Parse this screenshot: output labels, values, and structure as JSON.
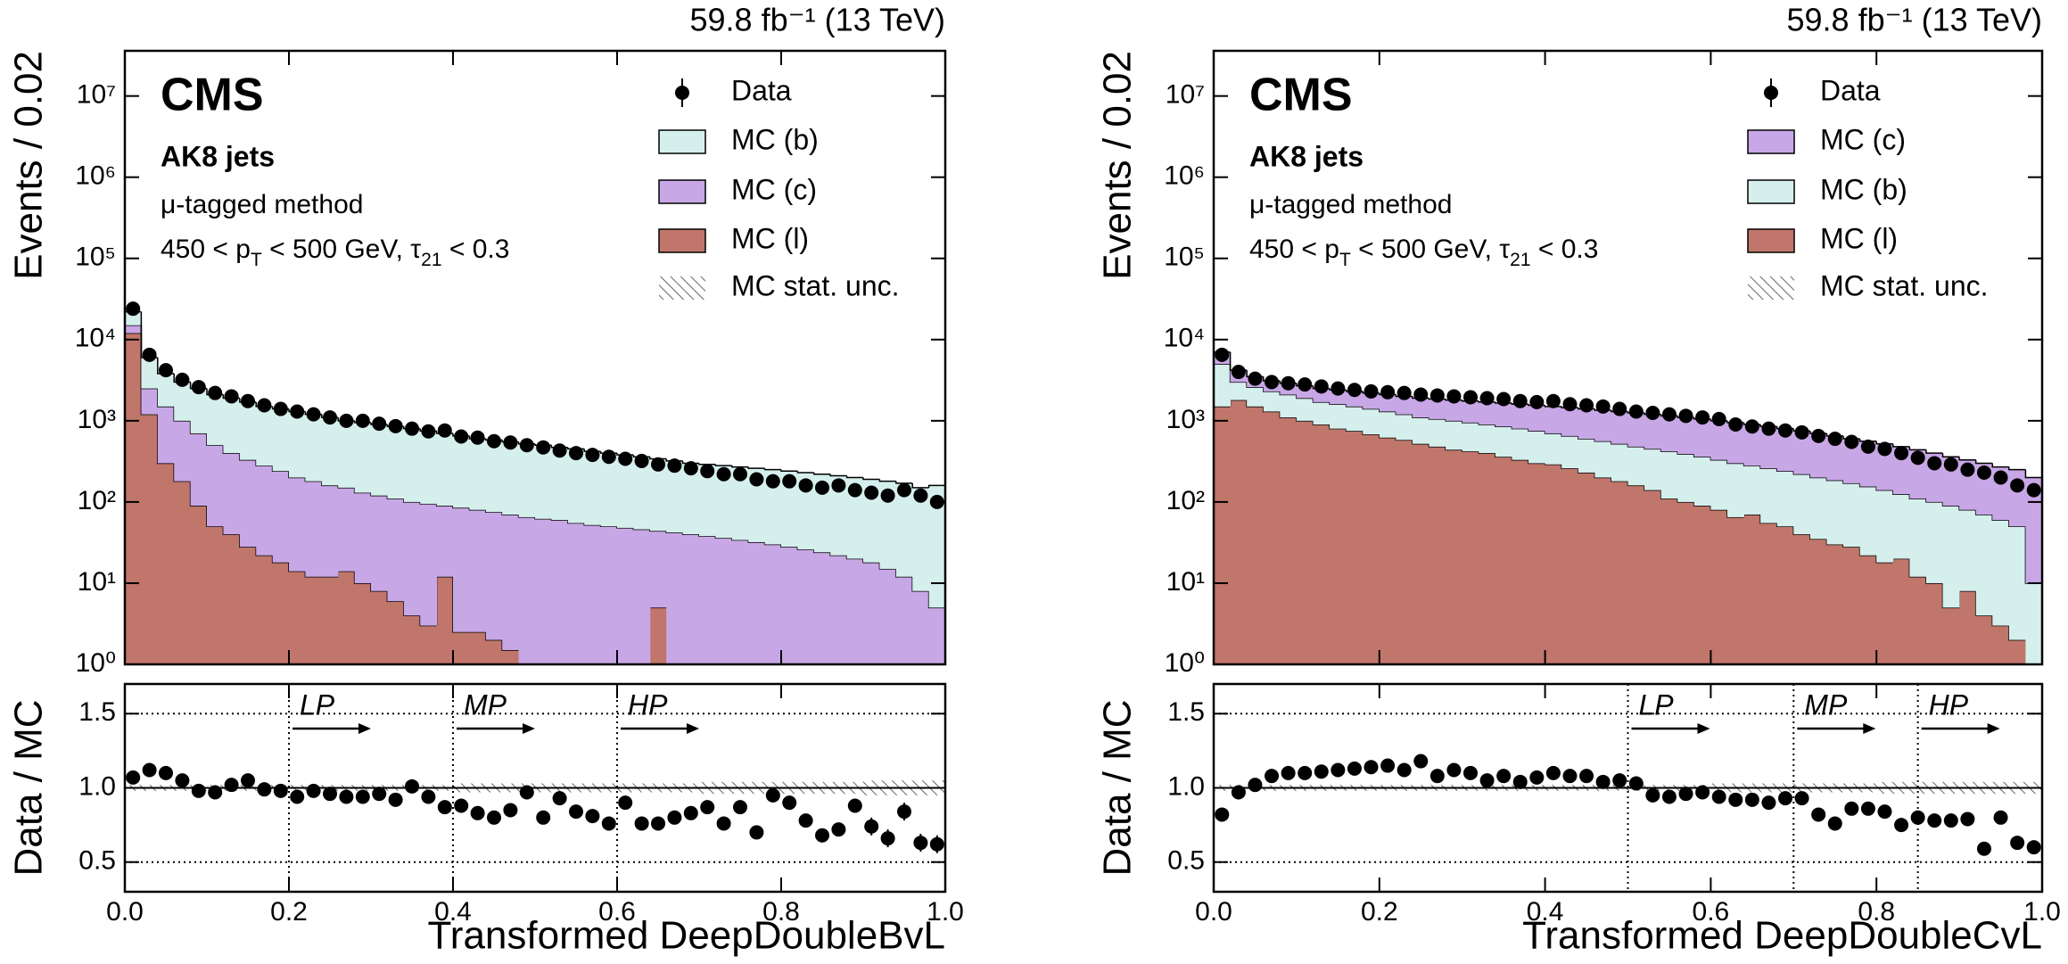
{
  "chart_data": [
    {
      "type": "histogram_ratio",
      "lumi": "59.8 fb⁻¹ (13 TeV)",
      "experiment": "CMS",
      "jets": "AK8 jets",
      "method": "μ-tagged method",
      "selection": [
        "450 < p",
        "T",
        " < 500 GeV, τ",
        "21",
        " < 0.3"
      ],
      "ylabel": "Events / 0.02",
      "log": true,
      "xlim": [
        0,
        1
      ],
      "ylim": [
        1,
        36000000
      ],
      "yticks": [
        {
          "value": 1,
          "label": "10⁰"
        },
        {
          "value": 10,
          "label": "10¹"
        },
        {
          "value": 100,
          "label": "10²"
        },
        {
          "value": 1000,
          "label": "10³"
        },
        {
          "value": 10000,
          "label": "10⁴"
        },
        {
          "value": 100000,
          "label": "10⁵"
        },
        {
          "value": 1000000,
          "label": "10⁶"
        },
        {
          "value": 10000000,
          "label": "10⁷"
        }
      ],
      "bins": [
        0,
        0.02,
        0.04,
        0.06,
        0.08,
        0.1,
        0.12,
        0.14,
        0.16,
        0.18,
        0.2,
        0.22,
        0.24,
        0.26,
        0.28,
        0.3,
        0.32,
        0.34,
        0.36,
        0.38,
        0.4,
        0.42,
        0.44,
        0.46,
        0.48,
        0.5,
        0.52,
        0.54,
        0.56,
        0.58,
        0.6,
        0.62,
        0.64,
        0.66,
        0.68,
        0.7,
        0.72,
        0.74,
        0.76,
        0.78,
        0.8,
        0.82,
        0.84,
        0.86,
        0.88,
        0.9,
        0.92,
        0.94,
        0.96,
        0.98,
        1
      ],
      "series": [
        {
          "name": "MC (b)",
          "color": "#d5efed",
          "values": [
            7000,
            3500,
            2300,
            2000,
            1800,
            1600,
            1500,
            1370,
            1220,
            1160,
            1100,
            1020,
            940,
            850,
            820,
            780,
            740,
            700,
            655,
            610,
            565,
            520,
            505,
            480,
            455,
            438,
            410,
            395,
            368,
            350,
            332,
            314,
            296,
            278,
            260,
            252,
            244,
            236,
            228,
            220,
            212,
            204,
            196,
            188,
            180,
            172,
            165,
            158,
            142,
            155
          ]
        },
        {
          "name": "MC (c)",
          "color": "#c8a7e6",
          "values": [
            3000,
            1300,
            1200,
            820,
            610,
            450,
            360,
            302,
            258,
            222,
            186,
            168,
            148,
            136,
            120,
            112,
            104,
            96,
            92,
            78,
            82.5,
            77.5,
            73,
            68.5,
            65,
            62,
            60,
            55,
            52,
            50,
            48,
            46,
            39,
            42,
            40,
            38,
            36,
            34,
            32,
            30,
            28,
            26,
            24,
            22,
            20,
            18,
            15,
            12,
            8,
            5
          ]
        },
        {
          "name": "MC (l)",
          "color": "#c0766a",
          "values": [
            12000,
            1200,
            300,
            180,
            90,
            50,
            40,
            28,
            22,
            18,
            14,
            12,
            12,
            14,
            10,
            8,
            6,
            4,
            3,
            12,
            2.5,
            2.5,
            2,
            1.5,
            0,
            0,
            0,
            0,
            0,
            0,
            0,
            0,
            5,
            0,
            0,
            0,
            0,
            0,
            0,
            0,
            0,
            0,
            0,
            0,
            0,
            0,
            0,
            0,
            0,
            0
          ]
        }
      ],
      "data": {
        "name": "Data",
        "values": [
          24000,
          6500,
          4200,
          3200,
          2600,
          2200,
          2000,
          1750,
          1550,
          1400,
          1300,
          1200,
          1100,
          1000,
          1000,
          920,
          860,
          800,
          740,
          760,
          640,
          620,
          560,
          540,
          500,
          470,
          430,
          400,
          380,
          360,
          340,
          320,
          290,
          280,
          260,
          240,
          220,
          220,
          190,
          180,
          180,
          160,
          150,
          160,
          140,
          130,
          120,
          140,
          120,
          100
        ]
      },
      "unc_label": "MC stat. unc.",
      "ratio": {
        "ylabel": "Data / MC",
        "xlabel": "Transformed DeepDoubleBvL",
        "ylim": [
          0.3,
          1.7
        ],
        "yticks": [
          0.5,
          {
            "value": 1,
            "label": "1.0"
          },
          1.5
        ],
        "reference_line": 1,
        "xticks": [
          {
            "value": 0,
            "label": "0.0"
          },
          0.2,
          0.4,
          0.6,
          0.8,
          {
            "value": 1,
            "label": "1.0"
          }
        ],
        "values": [
          1.07,
          1.12,
          1.1,
          1.05,
          0.98,
          0.97,
          1.02,
          1.05,
          0.99,
          0.98,
          0.94,
          0.98,
          0.96,
          0.94,
          0.94,
          0.96,
          0.92,
          1.01,
          0.94,
          0.87,
          0.88,
          0.83,
          0.8,
          0.85,
          0.97,
          0.8,
          0.93,
          0.84,
          0.81,
          0.76,
          0.9,
          0.76,
          0.76,
          0.8,
          0.83,
          0.87,
          0.76,
          0.87,
          0.7,
          0.95,
          0.9,
          0.78,
          0.68,
          0.72,
          0.88,
          0.74,
          0.66,
          0.84,
          0.63,
          0.62
        ],
        "errors": [
          0.01,
          0.01,
          0.01,
          0.01,
          0.01,
          0.01,
          0.01,
          0.01,
          0.01,
          0.01,
          0.01,
          0.01,
          0.01,
          0.01,
          0.01,
          0.01,
          0.01,
          0.01,
          0.01,
          0.01,
          0.02,
          0.02,
          0.02,
          0.02,
          0.02,
          0.02,
          0.02,
          0.02,
          0.02,
          0.02,
          0.02,
          0.02,
          0.02,
          0.02,
          0.02,
          0.04,
          0.04,
          0.04,
          0.04,
          0.04,
          0.04,
          0.04,
          0.04,
          0.04,
          0.04,
          0.06,
          0.06,
          0.06,
          0.06,
          0.06
        ],
        "unc": [
          0.02,
          0.02,
          0.02,
          0.02,
          0.02,
          0.02,
          0.02,
          0.02,
          0.02,
          0.02,
          0.02,
          0.02,
          0.02,
          0.02,
          0.02,
          0.02,
          0.02,
          0.02,
          0.02,
          0.02,
          0.03,
          0.03,
          0.03,
          0.03,
          0.03,
          0.03,
          0.03,
          0.03,
          0.03,
          0.03,
          0.03,
          0.03,
          0.03,
          0.03,
          0.03,
          0.04,
          0.04,
          0.04,
          0.04,
          0.04,
          0.04,
          0.04,
          0.04,
          0.04,
          0.04,
          0.05,
          0.05,
          0.05,
          0.05,
          0.05
        ],
        "regions": [
          {
            "x": 0.2,
            "label": "LP"
          },
          {
            "x": 0.4,
            "label": "MP"
          },
          {
            "x": 0.6,
            "label": "HP"
          }
        ]
      }
    },
    {
      "type": "histogram_ratio",
      "lumi": "59.8 fb⁻¹ (13 TeV)",
      "experiment": "CMS",
      "jets": "AK8 jets",
      "method": "μ-tagged method",
      "selection": [
        "450 < p",
        "T",
        " < 500 GeV, τ",
        "21",
        " < 0.3"
      ],
      "ylabel": "Events / 0.02",
      "log": true,
      "xlim": [
        0,
        1
      ],
      "ylim": [
        1,
        36000000
      ],
      "yticks": [
        {
          "value": 1,
          "label": "10⁰"
        },
        {
          "value": 10,
          "label": "10¹"
        },
        {
          "value": 100,
          "label": "10²"
        },
        {
          "value": 1000,
          "label": "10³"
        },
        {
          "value": 10000,
          "label": "10⁴"
        },
        {
          "value": 100000,
          "label": "10⁵"
        },
        {
          "value": 1000000,
          "label": "10⁶"
        },
        {
          "value": 10000000,
          "label": "10⁷"
        }
      ],
      "bins": [
        0,
        0.02,
        0.04,
        0.06,
        0.08,
        0.1,
        0.12,
        0.14,
        0.16,
        0.18,
        0.2,
        0.22,
        0.24,
        0.26,
        0.28,
        0.3,
        0.32,
        0.34,
        0.36,
        0.38,
        0.4,
        0.42,
        0.44,
        0.46,
        0.48,
        0.5,
        0.52,
        0.54,
        0.56,
        0.58,
        0.6,
        0.62,
        0.64,
        0.66,
        0.68,
        0.7,
        0.72,
        0.74,
        0.76,
        0.78,
        0.8,
        0.82,
        0.84,
        0.86,
        0.88,
        0.9,
        0.92,
        0.94,
        0.96,
        0.98,
        1
      ],
      "series": [
        {
          "name": "MC (c)",
          "color": "#c8a7e6",
          "values": [
            2000,
            1200,
            900,
            800,
            800,
            800,
            800,
            800,
            800,
            800,
            800,
            800,
            800,
            800,
            800,
            800,
            800,
            800,
            800,
            800,
            800,
            800,
            800,
            790,
            780,
            770,
            750,
            730,
            710,
            690,
            670,
            650,
            620,
            590,
            560,
            530,
            500,
            465,
            430,
            405,
            380,
            355,
            330,
            300,
            270,
            250,
            230,
            210,
            200,
            190
          ]
        },
        {
          "name": "MC (b)",
          "color": "#d5efed",
          "values": [
            3500,
            1200,
            1100,
            1000,
            1000,
            900,
            800,
            800,
            750,
            720,
            680,
            620,
            580,
            570,
            560,
            530,
            500,
            490,
            470,
            450,
            410,
            390,
            370,
            360,
            340,
            320,
            310,
            310,
            290,
            270,
            250,
            235,
            210,
            205,
            190,
            180,
            165,
            155,
            142,
            133,
            122,
            105,
            98,
            90,
            85,
            72,
            66,
            57,
            48,
            10
          ]
        },
        {
          "name": "MC (l)",
          "color": "#c0766a",
          "values": [
            1500,
            1800,
            1500,
            1300,
            1100,
            1000,
            900,
            800,
            750,
            680,
            620,
            580,
            520,
            480,
            440,
            420,
            400,
            360,
            330,
            300,
            290,
            260,
            230,
            200,
            180,
            160,
            140,
            110,
            100,
            90,
            80,
            65,
            70,
            55,
            50,
            40,
            35,
            30,
            28,
            22,
            18,
            20,
            12,
            10,
            5,
            8,
            4,
            3,
            2,
            0
          ]
        }
      ],
      "data": {
        "name": "Data",
        "values": [
          6500,
          4000,
          3300,
          3000,
          2900,
          2800,
          2650,
          2500,
          2400,
          2300,
          2250,
          2200,
          2100,
          2050,
          2000,
          1950,
          1900,
          1850,
          1750,
          1700,
          1750,
          1600,
          1550,
          1500,
          1400,
          1300,
          1250,
          1200,
          1150,
          1100,
          1050,
          900,
          850,
          800,
          760,
          720,
          650,
          600,
          550,
          480,
          450,
          400,
          350,
          300,
          290,
          250,
          230,
          200,
          160,
          140
        ]
      },
      "unc_label": "MC stat. unc.",
      "ratio": {
        "ylabel": "Data / MC",
        "xlabel": "Transformed DeepDoubleCvL",
        "ylim": [
          0.3,
          1.7
        ],
        "yticks": [
          0.5,
          {
            "value": 1,
            "label": "1.0"
          },
          1.5
        ],
        "reference_line": 1,
        "xticks": [
          {
            "value": 0,
            "label": "0.0"
          },
          0.2,
          0.4,
          0.6,
          0.8,
          {
            "value": 1,
            "label": "1.0"
          }
        ],
        "values": [
          0.82,
          0.97,
          1.02,
          1.08,
          1.1,
          1.1,
          1.11,
          1.12,
          1.13,
          1.14,
          1.15,
          1.12,
          1.18,
          1.08,
          1.12,
          1.1,
          1.05,
          1.08,
          1.04,
          1.07,
          1.1,
          1.08,
          1.08,
          1.04,
          1.05,
          1.03,
          0.95,
          0.94,
          0.96,
          0.97,
          0.94,
          0.92,
          0.92,
          0.9,
          0.93,
          0.93,
          0.82,
          0.76,
          0.86,
          0.86,
          0.84,
          0.75,
          0.8,
          0.78,
          0.78,
          0.79,
          0.59,
          0.8,
          0.63,
          0.6
        ],
        "errors": [
          0.01,
          0.01,
          0.01,
          0.01,
          0.01,
          0.01,
          0.01,
          0.01,
          0.01,
          0.01,
          0.01,
          0.01,
          0.01,
          0.01,
          0.01,
          0.01,
          0.01,
          0.01,
          0.01,
          0.01,
          0.01,
          0.01,
          0.01,
          0.01,
          0.01,
          0.01,
          0.01,
          0.01,
          0.01,
          0.01,
          0.02,
          0.02,
          0.02,
          0.02,
          0.02,
          0.02,
          0.02,
          0.02,
          0.02,
          0.02,
          0.03,
          0.03,
          0.03,
          0.03,
          0.03,
          0.03,
          0.03,
          0.03,
          0.03,
          0.03
        ],
        "unc": [
          0.02,
          0.02,
          0.02,
          0.02,
          0.02,
          0.02,
          0.02,
          0.02,
          0.02,
          0.02,
          0.02,
          0.02,
          0.02,
          0.02,
          0.02,
          0.02,
          0.02,
          0.02,
          0.02,
          0.02,
          0.02,
          0.02,
          0.02,
          0.02,
          0.02,
          0.02,
          0.02,
          0.02,
          0.02,
          0.02,
          0.03,
          0.03,
          0.03,
          0.03,
          0.03,
          0.03,
          0.03,
          0.03,
          0.03,
          0.03,
          0.04,
          0.04,
          0.04,
          0.04,
          0.04,
          0.04,
          0.04,
          0.04,
          0.04,
          0.04
        ],
        "regions": [
          {
            "x": 0.5,
            "label": "LP"
          },
          {
            "x": 0.7,
            "label": "MP"
          },
          {
            "x": 0.85,
            "label": "HP"
          }
        ]
      }
    }
  ]
}
